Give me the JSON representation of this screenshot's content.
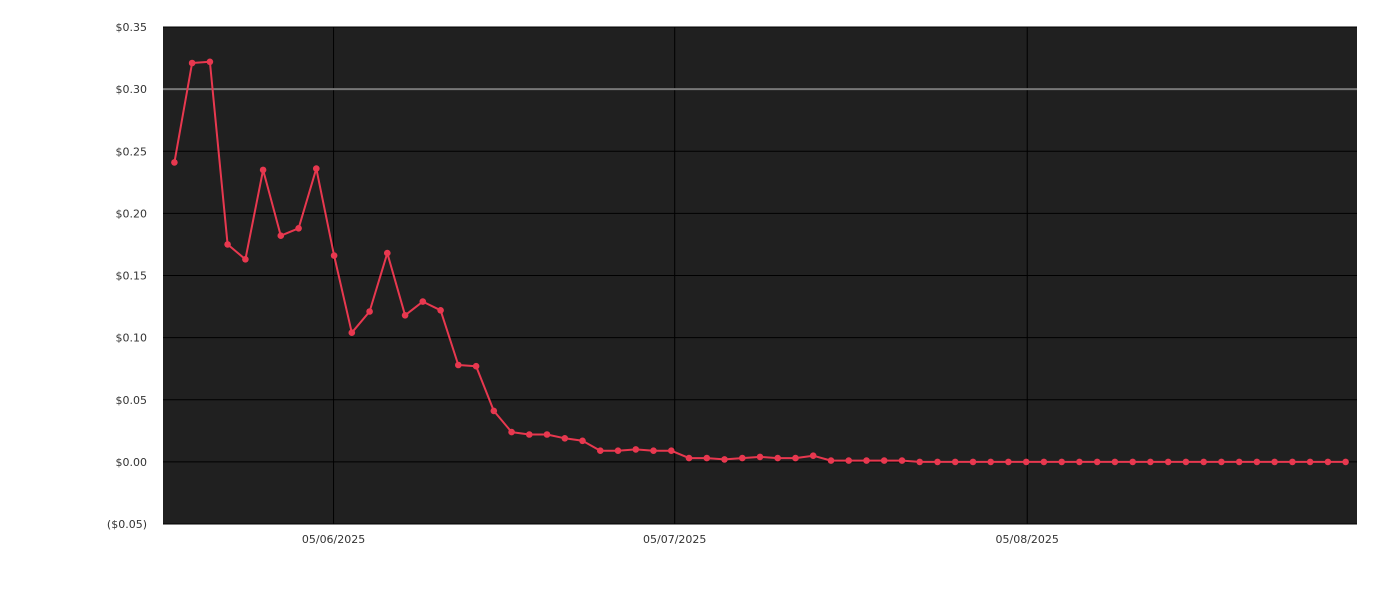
{
  "chart_data": {
    "type": "line",
    "title": "",
    "xlabel": "",
    "ylabel": "",
    "ylim": [
      -0.05,
      0.35
    ],
    "yticks": [
      {
        "value": 0.35,
        "label": "$0.35"
      },
      {
        "value": 0.3,
        "label": "$0.30"
      },
      {
        "value": 0.25,
        "label": "$0.25"
      },
      {
        "value": 0.2,
        "label": "$0.20"
      },
      {
        "value": 0.15,
        "label": "$0.15"
      },
      {
        "value": 0.1,
        "label": "$0.10"
      },
      {
        "value": 0.05,
        "label": "$0.05"
      },
      {
        "value": 0.0,
        "label": "$0.00"
      },
      {
        "value": -0.05,
        "label": "($0.05)"
      }
    ],
    "xticks": [
      {
        "value": "2025-06-01",
        "label": "05/06/2025"
      },
      {
        "value": "2025-07-01",
        "label": "05/07/2025"
      },
      {
        "value": "2025-08-01",
        "label": "05/08/2025"
      }
    ],
    "reference_line": {
      "value": 0.3,
      "color": "#777777"
    },
    "grid": true,
    "colors": {
      "plot_background": "#202020",
      "grid": "#000000",
      "series": "#e8384f"
    },
    "series": [
      {
        "x_start": "2025-05-18",
        "x_end": "2025-08-29",
        "values": [
          0.241,
          0.321,
          0.322,
          0.175,
          0.163,
          0.235,
          0.182,
          0.188,
          0.236,
          0.166,
          0.104,
          0.121,
          0.168,
          0.118,
          0.129,
          0.122,
          0.078,
          0.077,
          0.041,
          0.024,
          0.022,
          0.022,
          0.019,
          0.017,
          0.009,
          0.009,
          0.01,
          0.009,
          0.009,
          0.003,
          0.003,
          0.002,
          0.003,
          0.004,
          0.003,
          0.003,
          0.005,
          0.001,
          0.001,
          0.001,
          0.001,
          0.001,
          0.0,
          0.0,
          0.0,
          0.0,
          0.0,
          0.0,
          0.0,
          0.0,
          0.0,
          0.0,
          0.0,
          0.0,
          0.0,
          0.0,
          0.0,
          0.0,
          0.0,
          0.0,
          0.0,
          0.0,
          0.0,
          0.0,
          0.0,
          0.0,
          0.0
        ]
      }
    ]
  }
}
